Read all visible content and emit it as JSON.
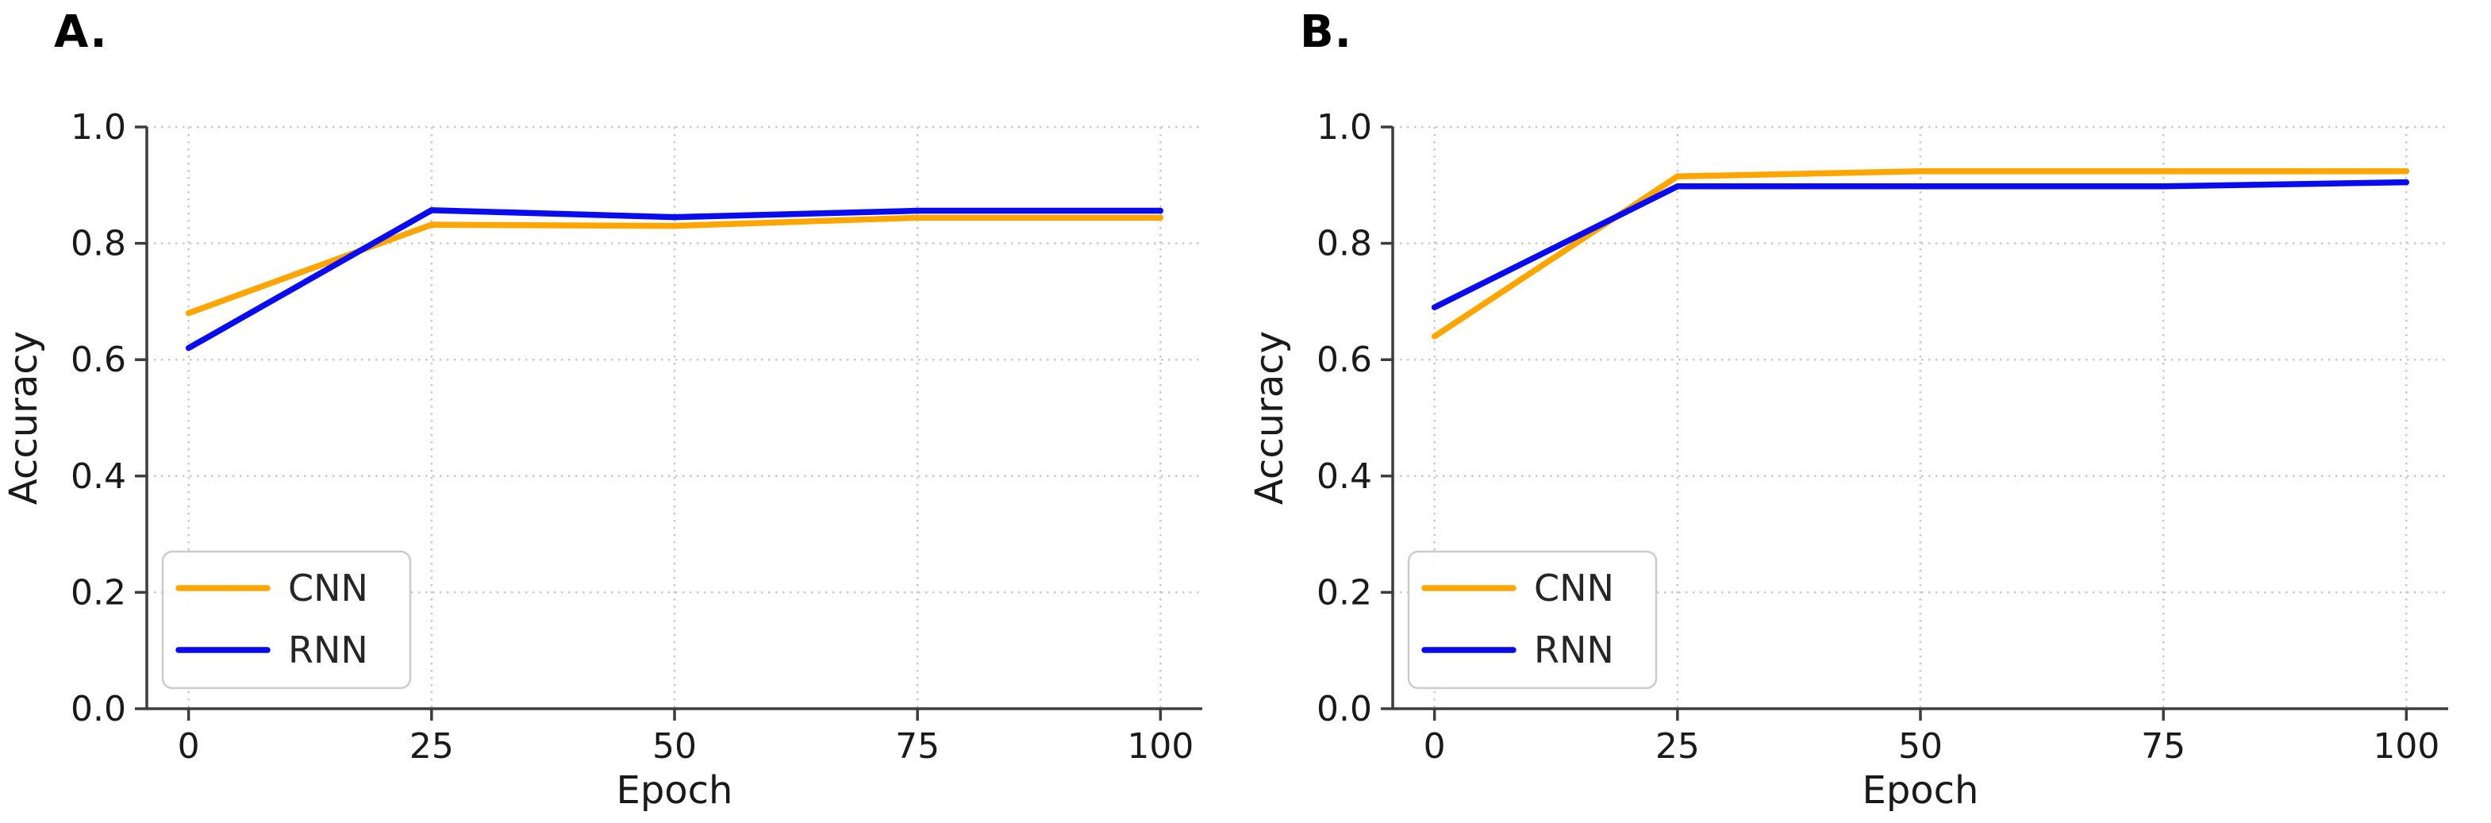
{
  "figure": {
    "background": "#ffffff",
    "text_color": "#1a1a1a",
    "axis_color": "#3d3d3d",
    "grid_color": "#c9c9c9",
    "legend_border_color": "#cccccc"
  },
  "chart_data": [
    {
      "type": "line",
      "panel_label": "A.",
      "title": "",
      "xlabel": "Epoch",
      "ylabel": "Accuracy",
      "x": [
        0,
        25,
        50,
        75,
        100
      ],
      "series": [
        {
          "name": "CNN",
          "color": "#FFA500",
          "values": [
            0.68,
            0.832,
            0.83,
            0.844,
            0.844
          ]
        },
        {
          "name": "RNN",
          "color": "#0B0BF0",
          "values": [
            0.62,
            0.857,
            0.845,
            0.856,
            0.856
          ]
        }
      ],
      "xlim": [
        -4.3,
        104.3
      ],
      "ylim": [
        0,
        1
      ],
      "xticks": [
        0,
        25,
        50,
        75,
        100
      ],
      "xtick_labels": [
        "0",
        "25",
        "50",
        "75",
        "100"
      ],
      "yticks": [
        0,
        0.2,
        0.4,
        0.6,
        0.8,
        1.0
      ],
      "ytick_labels": [
        "0.0",
        "0.2",
        "0.4",
        "0.6",
        "0.8",
        "1.0"
      ],
      "grid": true,
      "grid_style": "dotted",
      "legend_position": "lower-left",
      "legend_labels": [
        "CNN",
        "RNN"
      ]
    },
    {
      "type": "line",
      "panel_label": "B.",
      "title": "",
      "xlabel": "Epoch",
      "ylabel": "Accuracy",
      "x": [
        0,
        25,
        50,
        75,
        100
      ],
      "series": [
        {
          "name": "CNN",
          "color": "#FFA500",
          "values": [
            0.64,
            0.915,
            0.924,
            0.924,
            0.924
          ]
        },
        {
          "name": "RNN",
          "color": "#0B0BF0",
          "values": [
            0.69,
            0.898,
            0.898,
            0.898,
            0.905
          ]
        }
      ],
      "xlim": [
        -4.3,
        104.3
      ],
      "ylim": [
        0,
        1
      ],
      "xticks": [
        0,
        25,
        50,
        75,
        100
      ],
      "xtick_labels": [
        "0",
        "25",
        "50",
        "75",
        "100"
      ],
      "yticks": [
        0,
        0.2,
        0.4,
        0.6,
        0.8,
        1.0
      ],
      "ytick_labels": [
        "0.0",
        "0.2",
        "0.4",
        "0.6",
        "0.8",
        "1.0"
      ],
      "grid": true,
      "grid_style": "dotted",
      "legend_position": "lower-left",
      "legend_labels": [
        "CNN",
        "RNN"
      ]
    }
  ]
}
